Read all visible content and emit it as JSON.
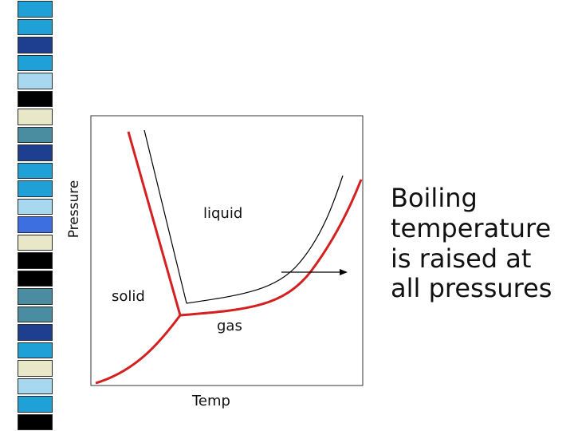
{
  "decoration": {
    "colors": [
      "#1fa0d6",
      "#4a8da0",
      "#1e3f8f",
      "#a8d8f0",
      "#3d6fe0",
      "#000000",
      "#e8e8c8"
    ],
    "squares": [
      "cyan",
      "cyan",
      "navy",
      "cyan",
      "light",
      "black",
      "cream",
      "teal",
      "navy",
      "cyan",
      "cyan",
      "light",
      "blue",
      "cream",
      "black",
      "black",
      "teal",
      "teal",
      "navy",
      "cyan",
      "cream",
      "light",
      "cyan",
      "black"
    ]
  },
  "diagram": {
    "labels": {
      "liquid": "liquid",
      "solid": "solid",
      "gas": "gas",
      "xlabel": "Temp",
      "ylabel": "Pressure"
    },
    "colors": {
      "shifted_curve": "#d42020",
      "original_curve": "#000000",
      "frame": "#333333",
      "arrow": "#000000"
    }
  },
  "caption": {
    "lines": [
      "Boiling",
      "temperature",
      "is raised at",
      "all pressures"
    ]
  }
}
